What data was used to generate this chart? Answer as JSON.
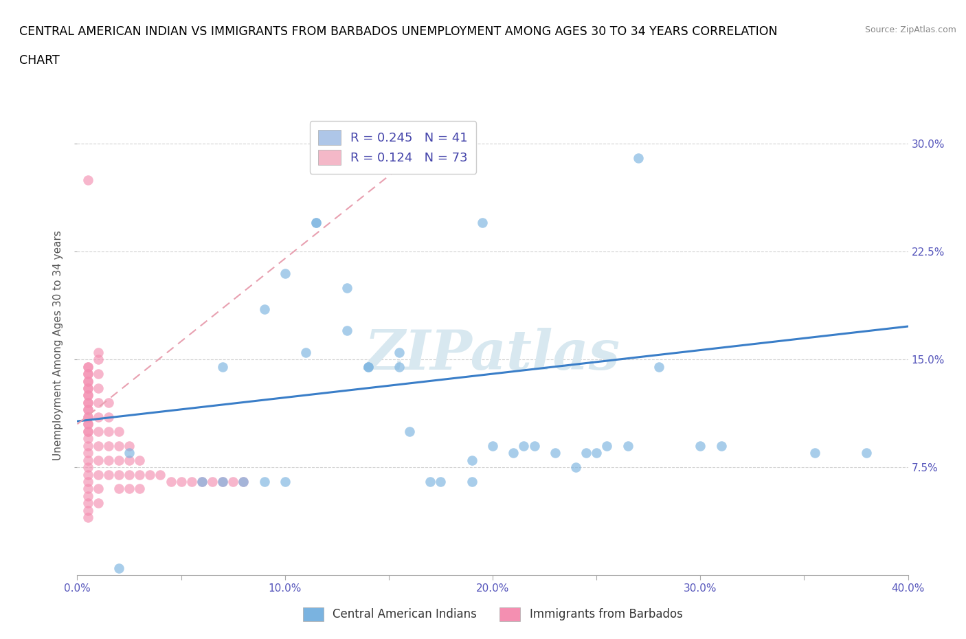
{
  "title_line1": "CENTRAL AMERICAN INDIAN VS IMMIGRANTS FROM BARBADOS UNEMPLOYMENT AMONG AGES 30 TO 34 YEARS CORRELATION",
  "title_line2": "CHART",
  "source": "Source: ZipAtlas.com",
  "ylabel": "Unemployment Among Ages 30 to 34 years",
  "xlim": [
    0.0,
    0.4
  ],
  "ylim": [
    0.0,
    0.32
  ],
  "xticks": [
    0.0,
    0.05,
    0.1,
    0.15,
    0.2,
    0.25,
    0.3,
    0.35,
    0.4
  ],
  "yticks": [
    0.075,
    0.15,
    0.225,
    0.3
  ],
  "xticklabels": [
    "0.0%",
    "",
    "10.0%",
    "",
    "20.0%",
    "",
    "30.0%",
    "",
    "40.0%"
  ],
  "yticklabels_right": [
    "7.5%",
    "15.0%",
    "22.5%",
    "30.0%"
  ],
  "legend_entries": [
    {
      "label": "R = 0.245   N = 41",
      "facecolor": "#aec6e8"
    },
    {
      "label": "R = 0.124   N = 73",
      "facecolor": "#f4b8c8"
    }
  ],
  "watermark": "ZIPatlas",
  "blue_scatter_x": [
    0.02,
    0.09,
    0.1,
    0.115,
    0.115,
    0.13,
    0.13,
    0.14,
    0.14,
    0.155,
    0.155,
    0.16,
    0.17,
    0.175,
    0.19,
    0.19,
    0.195,
    0.2,
    0.21,
    0.215,
    0.22,
    0.23,
    0.24,
    0.245,
    0.25,
    0.255,
    0.265,
    0.27,
    0.28,
    0.3,
    0.31,
    0.355,
    0.38,
    0.07,
    0.025,
    0.06,
    0.07,
    0.08,
    0.09,
    0.1,
    0.11
  ],
  "blue_scatter_y": [
    0.005,
    0.185,
    0.21,
    0.245,
    0.245,
    0.17,
    0.2,
    0.145,
    0.145,
    0.145,
    0.155,
    0.1,
    0.065,
    0.065,
    0.065,
    0.08,
    0.245,
    0.09,
    0.085,
    0.09,
    0.09,
    0.085,
    0.075,
    0.085,
    0.085,
    0.09,
    0.09,
    0.29,
    0.145,
    0.09,
    0.09,
    0.085,
    0.085,
    0.145,
    0.085,
    0.065,
    0.065,
    0.065,
    0.065,
    0.065,
    0.155
  ],
  "pink_scatter_x": [
    0.005,
    0.005,
    0.005,
    0.005,
    0.005,
    0.005,
    0.005,
    0.005,
    0.005,
    0.005,
    0.005,
    0.005,
    0.005,
    0.005,
    0.005,
    0.005,
    0.005,
    0.005,
    0.005,
    0.005,
    0.005,
    0.005,
    0.005,
    0.01,
    0.01,
    0.01,
    0.01,
    0.01,
    0.01,
    0.01,
    0.01,
    0.01,
    0.01,
    0.01,
    0.01,
    0.015,
    0.015,
    0.015,
    0.015,
    0.015,
    0.015,
    0.02,
    0.02,
    0.02,
    0.02,
    0.02,
    0.025,
    0.025,
    0.025,
    0.025,
    0.03,
    0.03,
    0.03,
    0.035,
    0.04,
    0.045,
    0.05,
    0.055,
    0.06,
    0.065,
    0.07,
    0.075,
    0.08,
    0.005,
    0.005,
    0.005,
    0.005,
    0.005,
    0.005,
    0.005,
    0.005,
    0.005,
    0.005
  ],
  "pink_scatter_y": [
    0.275,
    0.145,
    0.14,
    0.135,
    0.13,
    0.125,
    0.12,
    0.115,
    0.11,
    0.105,
    0.1,
    0.095,
    0.09,
    0.085,
    0.08,
    0.075,
    0.07,
    0.065,
    0.06,
    0.055,
    0.05,
    0.045,
    0.04,
    0.155,
    0.15,
    0.14,
    0.13,
    0.12,
    0.11,
    0.1,
    0.09,
    0.08,
    0.07,
    0.06,
    0.05,
    0.12,
    0.11,
    0.1,
    0.09,
    0.08,
    0.07,
    0.1,
    0.09,
    0.08,
    0.07,
    0.06,
    0.09,
    0.08,
    0.07,
    0.06,
    0.08,
    0.07,
    0.06,
    0.07,
    0.07,
    0.065,
    0.065,
    0.065,
    0.065,
    0.065,
    0.065,
    0.065,
    0.065,
    0.145,
    0.14,
    0.135,
    0.13,
    0.125,
    0.12,
    0.115,
    0.11,
    0.105,
    0.1
  ],
  "blue_line_x0": 0.0,
  "blue_line_x1": 0.4,
  "blue_line_y0": 0.107,
  "blue_line_y1": 0.173,
  "pink_line_x0": 0.0,
  "pink_line_x1": 0.165,
  "pink_line_y0": 0.105,
  "pink_line_y1": 0.295,
  "blue_color": "#7ab3e0",
  "pink_color": "#f48fb1",
  "blue_line_color": "#3a7ec8",
  "pink_line_color": "#e8a0b0",
  "background_color": "#ffffff",
  "grid_color": "#cccccc",
  "tick_color": "#5555bb",
  "title_color": "#000000",
  "watermark_color": "#d8e8f0",
  "ylabel_color": "#555555",
  "source_color": "#888888",
  "legend_label_color": "#4444aa",
  "bottom_legend_color": "#333333"
}
